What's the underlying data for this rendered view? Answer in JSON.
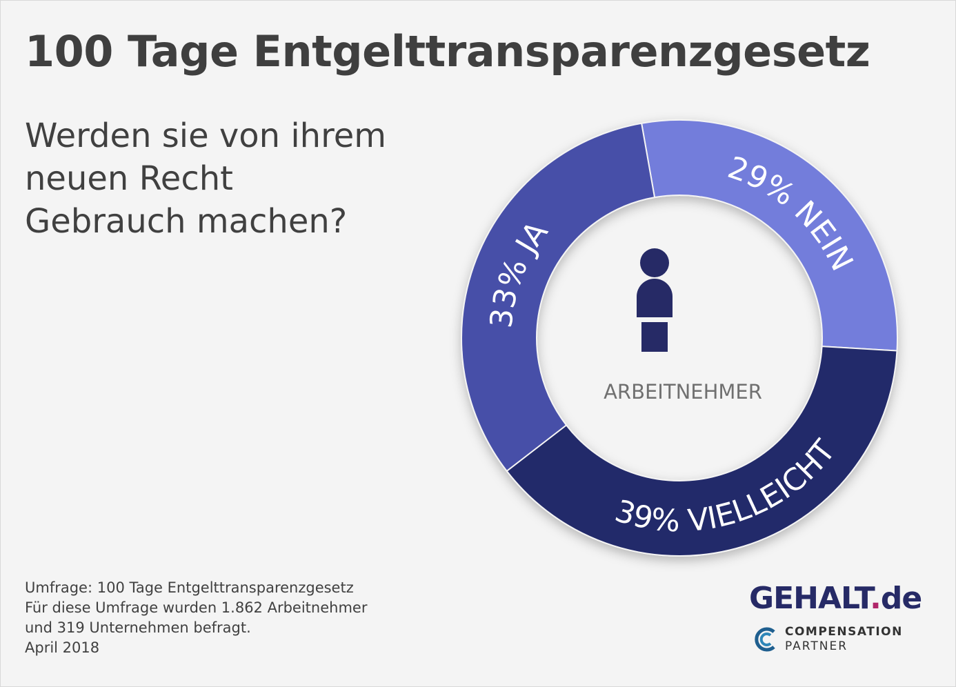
{
  "title": "100 Tage Entgelttransparenzgesetz",
  "question": [
    "Werden sie von ihrem",
    "neuen Recht",
    "Gebrauch machen?"
  ],
  "center_label": "ARBEITNEHMER",
  "center_icon": "person-icon",
  "notes": [
    "Umfrage: 100 Tage Entgelttransparenzgesetz",
    "Für diese Umfrage wurden 1.862 Arbeitnehmer",
    "und 319 Unternehmen befragt.",
    "April 2018"
  ],
  "logo": {
    "brand": "GEHALT",
    "dot": ".",
    "tld": "de",
    "partner_line1": "COMPENSATION",
    "partner_line2": "PARTNER"
  },
  "chart_data": {
    "type": "pie",
    "donut": true,
    "categories": [
      "NEIN",
      "VIELLEICHT",
      "JA"
    ],
    "values": [
      29,
      39,
      33
    ],
    "unit": "%",
    "colors": [
      "#737ddb",
      "#23296b",
      "#4750a8"
    ],
    "label_color": "#ffffff",
    "icon_color": "#262a66"
  }
}
